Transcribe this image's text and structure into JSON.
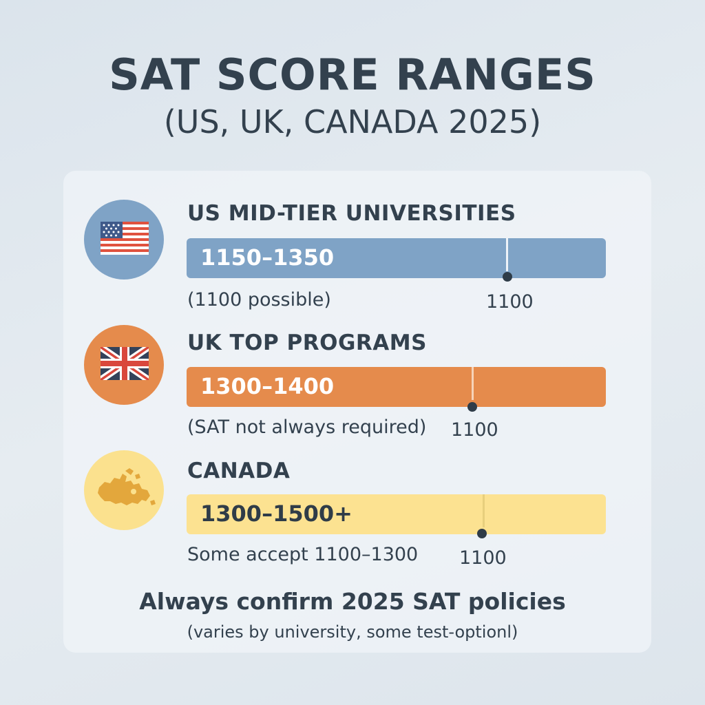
{
  "header": {
    "title": "SAT SCORE RANGES",
    "subtitle": "(US, UK, CANADA 2025)"
  },
  "sections": [
    {
      "title": "US MID-TIER UNIVERSITIES",
      "range": "1150–1350",
      "note": "(1100 possible)",
      "marker": "1100",
      "flag_icon": "us-flag-icon",
      "circle_color": "#7fa3c6",
      "bar_color": "#7fa3c6",
      "bar_text_color": "#ffffff"
    },
    {
      "title": "UK TOP PROGRAMS",
      "range": "1300–1400",
      "note": "(SAT not always required)",
      "marker": "1100",
      "flag_icon": "uk-flag-icon",
      "circle_color": "#e58b4c",
      "bar_color": "#e58b4c",
      "bar_text_color": "#ffffff"
    },
    {
      "title": "CANADA",
      "range": "1300–1500+",
      "note": "Some accept 1100–1300",
      "marker": "1100",
      "flag_icon": "canada-map-icon",
      "circle_color": "#fbe18e",
      "bar_color": "#fce291",
      "bar_text_color": "#2f3c48"
    }
  ],
  "footer": {
    "headline": "Always confirm 2025 SAT policies",
    "note": "(varies by university, some test-optionl)"
  }
}
